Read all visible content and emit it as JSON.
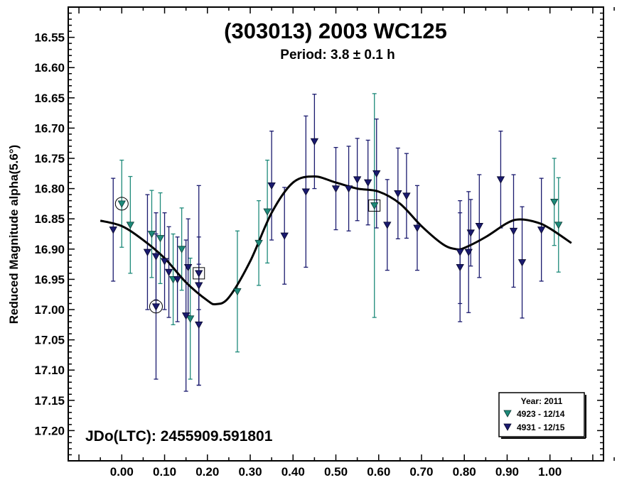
{
  "chart_data": {
    "type": "scatter",
    "title": "(303013) 2003 WC125",
    "subtitle": "Period: 3.8 ± 0.1 h",
    "ylabel": "Reduced Magnitude alpha(5.6°)",
    "xlabel": "",
    "annotation": "JDo(LTC): 2455909.591801",
    "xlim": [
      -0.125,
      1.125
    ],
    "ylim": [
      16.5,
      17.25
    ],
    "y_inverted": true,
    "x_ticks": [
      "0.00",
      "0.10",
      "0.20",
      "0.30",
      "0.40",
      "0.50",
      "0.60",
      "0.70",
      "0.80",
      "0.90",
      "1.00"
    ],
    "x_tick_values": [
      0.0,
      0.1,
      0.2,
      0.3,
      0.4,
      0.5,
      0.6,
      0.7,
      0.8,
      0.9,
      1.0
    ],
    "y_ticks": [
      "16.55",
      "16.60",
      "16.65",
      "16.70",
      "16.75",
      "16.80",
      "16.85",
      "16.90",
      "16.95",
      "17.00",
      "17.05",
      "17.10",
      "17.15",
      "17.20"
    ],
    "y_tick_values": [
      16.55,
      16.6,
      16.65,
      16.7,
      16.75,
      16.8,
      16.85,
      16.9,
      16.95,
      17.0,
      17.05,
      17.1,
      17.15,
      17.2
    ],
    "grid": false,
    "legend": {
      "placement": "bottom-right",
      "title": "Year: 2011",
      "entries": [
        "4923 - 12/14",
        "4931 - 12/15"
      ]
    },
    "colors": {
      "4923 - 12/14": "#1e8a7a",
      "4931 - 12/15": "#1a1a6e",
      "fit": "#000000"
    },
    "series": [
      {
        "name": "4923 - 12/14",
        "points": [
          {
            "x": 0.0,
            "y": 16.825,
            "err": 0.072,
            "marker": "circled"
          },
          {
            "x": 0.02,
            "y": 16.86,
            "err": 0.08
          },
          {
            "x": 0.07,
            "y": 16.875,
            "err": 0.072
          },
          {
            "x": 0.09,
            "y": 16.882,
            "err": 0.075
          },
          {
            "x": 0.12,
            "y": 16.95,
            "err": 0.075
          },
          {
            "x": 0.14,
            "y": 16.9,
            "err": 0.068
          },
          {
            "x": 0.16,
            "y": 17.015,
            "err": 0.1
          },
          {
            "x": 0.27,
            "y": 16.97,
            "err": 0.1
          },
          {
            "x": 0.32,
            "y": 16.89,
            "err": 0.07
          },
          {
            "x": 0.34,
            "y": 16.838,
            "err": 0.085
          },
          {
            "x": 0.59,
            "y": 16.828,
            "err": 0.185,
            "marker": "boxed"
          },
          {
            "x": 1.01,
            "y": 16.822,
            "err": 0.072
          },
          {
            "x": 1.02,
            "y": 16.86,
            "err": 0.078
          }
        ]
      },
      {
        "name": "4931 - 12/15",
        "points": [
          {
            "x": -0.02,
            "y": 16.868,
            "err": 0.085
          },
          {
            "x": 0.06,
            "y": 16.905,
            "err": 0.095
          },
          {
            "x": 0.08,
            "y": 16.912,
            "err": 0.072
          },
          {
            "x": 0.08,
            "y": 16.995,
            "err": 0.12,
            "marker": "circled"
          },
          {
            "x": 0.1,
            "y": 16.92,
            "err": 0.08
          },
          {
            "x": 0.11,
            "y": 16.938,
            "err": 0.075
          },
          {
            "x": 0.13,
            "y": 16.95,
            "err": 0.07
          },
          {
            "x": 0.15,
            "y": 17.01,
            "err": 0.125
          },
          {
            "x": 0.155,
            "y": 16.93,
            "err": 0.08
          },
          {
            "x": 0.18,
            "y": 16.96,
            "err": 0.165
          },
          {
            "x": 0.18,
            "y": 17.025,
            "err": 0.1
          },
          {
            "x": 0.18,
            "y": 16.94,
            "err": 0.06,
            "marker": "boxed"
          },
          {
            "x": 0.35,
            "y": 16.795,
            "err": 0.09
          },
          {
            "x": 0.38,
            "y": 16.878,
            "err": 0.08
          },
          {
            "x": 0.43,
            "y": 16.805,
            "err": 0.125
          },
          {
            "x": 0.45,
            "y": 16.722,
            "err": 0.078
          },
          {
            "x": 0.5,
            "y": 16.8,
            "err": 0.068
          },
          {
            "x": 0.53,
            "y": 16.8,
            "err": 0.07
          },
          {
            "x": 0.55,
            "y": 16.785,
            "err": 0.068
          },
          {
            "x": 0.575,
            "y": 16.79,
            "err": 0.07
          },
          {
            "x": 0.595,
            "y": 16.775,
            "err": 0.09
          },
          {
            "x": 0.62,
            "y": 16.86,
            "err": 0.075
          },
          {
            "x": 0.645,
            "y": 16.808,
            "err": 0.075
          },
          {
            "x": 0.665,
            "y": 16.812,
            "err": 0.07
          },
          {
            "x": 0.69,
            "y": 16.865,
            "err": 0.07
          },
          {
            "x": 0.79,
            "y": 16.93,
            "err": 0.09
          },
          {
            "x": 0.79,
            "y": 16.905,
            "err": 0.085
          },
          {
            "x": 0.81,
            "y": 16.905,
            "err": 0.1
          },
          {
            "x": 0.815,
            "y": 16.873,
            "err": 0.055
          },
          {
            "x": 0.835,
            "y": 16.862,
            "err": 0.085
          },
          {
            "x": 0.885,
            "y": 16.785,
            "err": 0.08
          },
          {
            "x": 0.915,
            "y": 16.87,
            "err": 0.093
          },
          {
            "x": 0.935,
            "y": 16.922,
            "err": 0.092
          },
          {
            "x": 0.98,
            "y": 16.868,
            "err": 0.085
          }
        ]
      }
    ],
    "fit_curve": {
      "name": "fit",
      "x": [
        -0.05,
        0.0,
        0.05,
        0.1,
        0.15,
        0.2,
        0.22,
        0.25,
        0.3,
        0.35,
        0.4,
        0.45,
        0.5,
        0.55,
        0.6,
        0.65,
        0.7,
        0.75,
        0.78,
        0.8,
        0.85,
        0.9,
        0.93,
        0.97,
        1.0,
        1.05
      ],
      "y": [
        16.853,
        16.862,
        16.885,
        16.915,
        16.955,
        16.985,
        16.991,
        16.98,
        16.92,
        16.84,
        16.79,
        16.78,
        16.79,
        16.8,
        16.805,
        16.825,
        16.862,
        16.892,
        16.9,
        16.898,
        16.88,
        16.857,
        16.851,
        16.856,
        16.866,
        16.89
      ]
    }
  }
}
